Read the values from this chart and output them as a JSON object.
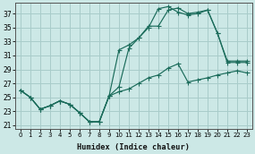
{
  "xlabel": "Humidex (Indice chaleur)",
  "bg_color": "#cce8e6",
  "grid_color": "#a8ccca",
  "line_color": "#1a6b5a",
  "xlim": [
    -0.5,
    23.5
  ],
  "ylim": [
    20.5,
    38.5
  ],
  "yticks": [
    21,
    23,
    25,
    27,
    29,
    31,
    33,
    35,
    37
  ],
  "xticks": [
    0,
    1,
    2,
    3,
    4,
    5,
    6,
    7,
    8,
    9,
    10,
    11,
    12,
    13,
    14,
    15,
    16,
    17,
    18,
    19,
    20,
    21,
    22,
    23
  ],
  "line1_x": [
    0,
    1,
    2,
    3,
    4,
    5,
    6,
    7,
    8,
    9,
    10,
    11,
    12,
    13,
    14,
    15,
    16,
    17,
    18,
    19,
    20,
    21,
    22,
    23
  ],
  "line1_y": [
    26.0,
    25.0,
    23.3,
    23.8,
    24.5,
    24.0,
    22.8,
    21.5,
    21.5,
    25.2,
    31.8,
    32.5,
    33.5,
    35.0,
    37.7,
    38.0,
    37.2,
    36.8,
    37.0,
    37.5,
    34.2,
    30.0,
    30.0,
    30.0
  ],
  "line2_x": [
    0,
    1,
    2,
    3,
    4,
    5,
    6,
    7,
    8,
    9,
    10,
    11,
    12,
    13,
    14,
    15,
    16,
    17,
    18,
    19,
    20,
    21,
    22,
    23
  ],
  "line2_y": [
    26.0,
    25.0,
    23.3,
    23.8,
    24.5,
    24.0,
    22.8,
    21.5,
    21.5,
    25.2,
    26.5,
    32.0,
    33.5,
    35.2,
    35.2,
    37.5,
    37.8,
    37.0,
    37.2,
    37.5,
    34.2,
    30.2,
    30.2,
    30.2
  ],
  "line3_x": [
    0,
    1,
    2,
    3,
    4,
    5,
    6,
    7,
    8,
    9,
    10,
    11,
    12,
    13,
    14,
    15,
    16,
    17,
    18,
    19,
    20,
    21,
    22,
    23
  ],
  "line3_y": [
    26.0,
    25.0,
    23.3,
    23.8,
    24.5,
    24.0,
    22.8,
    21.5,
    21.5,
    25.2,
    25.8,
    26.2,
    27.0,
    27.8,
    28.2,
    29.2,
    29.8,
    27.2,
    27.5,
    27.8,
    28.2,
    28.5,
    28.8,
    28.5
  ]
}
